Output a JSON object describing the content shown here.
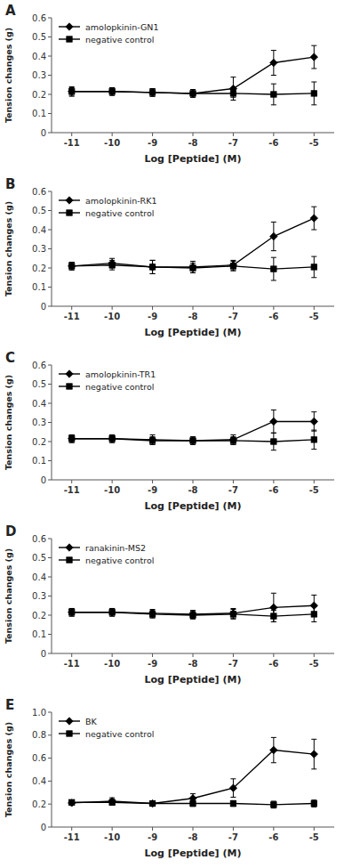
{
  "chart_data": [
    {
      "type": "line",
      "title": "A",
      "xlabel": "Log [Peptide] (M)",
      "ylabel": "Tension changes (g)",
      "x": [
        -11,
        -10,
        -9,
        -8,
        -7,
        -6,
        -5
      ],
      "xlim": [
        -11.5,
        -4.5
      ],
      "xticks": [
        -11,
        -10,
        -9,
        -8,
        -7,
        -6,
        -5
      ],
      "ylim": [
        0,
        0.6
      ],
      "yticks": [
        0,
        0.1,
        0.2,
        0.3,
        0.4,
        0.5,
        0.6
      ],
      "grid": false,
      "legend": "upper left",
      "series": [
        {
          "name": "amolopkinin-GN1",
          "color": "#000000",
          "marker": "diamond",
          "values": [
            0.215,
            0.215,
            0.21,
            0.205,
            0.23,
            0.365,
            0.395
          ],
          "errors": [
            0.025,
            0.02,
            0.02,
            0.02,
            0.06,
            0.065,
            0.06
          ]
        },
        {
          "name": "negative control",
          "color": "#000000",
          "marker": "square",
          "values": [
            0.215,
            0.215,
            0.21,
            0.205,
            0.205,
            0.2,
            0.205
          ],
          "errors": [
            0.02,
            0.02,
            0.02,
            0.02,
            0.02,
            0.055,
            0.06
          ]
        }
      ]
    },
    {
      "type": "line",
      "title": "B",
      "xlabel": "Log [Peptide] (M)",
      "ylabel": "Tension changes (g)",
      "x": [
        -11,
        -10,
        -9,
        -8,
        -7,
        -6,
        -5
      ],
      "xlim": [
        -11.5,
        -4.5
      ],
      "xticks": [
        -11,
        -10,
        -9,
        -8,
        -7,
        -6,
        -5
      ],
      "ylim": [
        0,
        0.6
      ],
      "yticks": [
        0,
        0.1,
        0.2,
        0.3,
        0.4,
        0.5,
        0.6
      ],
      "grid": false,
      "legend": "upper left",
      "series": [
        {
          "name": "amolopkinin-RK1",
          "color": "#000000",
          "marker": "diamond",
          "values": [
            0.21,
            0.225,
            0.205,
            0.205,
            0.215,
            0.365,
            0.46
          ],
          "errors": [
            0.02,
            0.025,
            0.035,
            0.03,
            0.025,
            0.075,
            0.06
          ]
        },
        {
          "name": "negative control",
          "color": "#000000",
          "marker": "square",
          "values": [
            0.21,
            0.215,
            0.205,
            0.2,
            0.21,
            0.195,
            0.205
          ],
          "errors": [
            0.02,
            0.025,
            0.035,
            0.025,
            0.025,
            0.06,
            0.055
          ]
        }
      ]
    },
    {
      "type": "line",
      "title": "C",
      "xlabel": "Log [Peptide] (M)",
      "ylabel": "Tension changes (g)",
      "x": [
        -11,
        -10,
        -9,
        -8,
        -7,
        -6,
        -5
      ],
      "xlim": [
        -11.5,
        -4.5
      ],
      "xticks": [
        -11,
        -10,
        -9,
        -8,
        -7,
        -6,
        -5
      ],
      "ylim": [
        0,
        0.6
      ],
      "yticks": [
        0,
        0.1,
        0.2,
        0.3,
        0.4,
        0.5,
        0.6
      ],
      "grid": false,
      "legend": "upper left",
      "series": [
        {
          "name": "amolopkinin-TR1",
          "color": "#000000",
          "marker": "diamond",
          "values": [
            0.215,
            0.215,
            0.21,
            0.205,
            0.21,
            0.305,
            0.305
          ],
          "errors": [
            0.02,
            0.02,
            0.025,
            0.02,
            0.025,
            0.06,
            0.05
          ]
        },
        {
          "name": "negative control",
          "color": "#000000",
          "marker": "square",
          "values": [
            0.215,
            0.215,
            0.205,
            0.205,
            0.205,
            0.2,
            0.21
          ],
          "errors": [
            0.02,
            0.02,
            0.02,
            0.02,
            0.02,
            0.045,
            0.05
          ]
        }
      ]
    },
    {
      "type": "line",
      "title": "D",
      "xlabel": "Log [Peptide] (M)",
      "ylabel": "Tension changes (g)",
      "x": [
        -11,
        -10,
        -9,
        -8,
        -7,
        -6,
        -5
      ],
      "xlim": [
        -11.5,
        -4.5
      ],
      "xticks": [
        -11,
        -10,
        -9,
        -8,
        -7,
        -6,
        -5
      ],
      "ylim": [
        0,
        0.6
      ],
      "yticks": [
        0,
        0.1,
        0.2,
        0.3,
        0.4,
        0.5,
        0.6
      ],
      "grid": false,
      "legend": "upper left",
      "series": [
        {
          "name": "ranakinin-MS2",
          "color": "#000000",
          "marker": "diamond",
          "values": [
            0.215,
            0.215,
            0.21,
            0.205,
            0.21,
            0.24,
            0.25
          ],
          "errors": [
            0.02,
            0.02,
            0.02,
            0.02,
            0.025,
            0.075,
            0.055
          ]
        },
        {
          "name": "negative control",
          "color": "#000000",
          "marker": "square",
          "values": [
            0.215,
            0.215,
            0.205,
            0.2,
            0.205,
            0.195,
            0.205
          ],
          "errors": [
            0.02,
            0.02,
            0.02,
            0.02,
            0.025,
            0.03,
            0.04
          ]
        }
      ]
    },
    {
      "type": "line",
      "title": "E",
      "xlabel": "Log [Peptide] (M)",
      "ylabel": "Tension changes (g)",
      "x": [
        -11,
        -10,
        -9,
        -8,
        -7,
        -6,
        -5
      ],
      "xlim": [
        -11.5,
        -4.5
      ],
      "xticks": [
        -11,
        -10,
        -9,
        -8,
        -7,
        -6,
        -5
      ],
      "ylim": [
        0,
        1.0
      ],
      "yticks": [
        0,
        0.2,
        0.4,
        0.6,
        0.8,
        {
          "value": 1.0,
          "label": "1.0"
        }
      ],
      "grid": false,
      "legend": "upper left",
      "series": [
        {
          "name": "BK",
          "color": "#000000",
          "marker": "diamond",
          "values": [
            0.21,
            0.225,
            0.205,
            0.25,
            0.34,
            0.67,
            0.635
          ],
          "errors": [
            0.02,
            0.03,
            0.02,
            0.04,
            0.08,
            0.11,
            0.13
          ]
        },
        {
          "name": "negative control",
          "color": "#000000",
          "marker": "square",
          "values": [
            0.215,
            0.215,
            0.205,
            0.205,
            0.205,
            0.195,
            0.205
          ],
          "errors": [
            0.02,
            0.025,
            0.02,
            0.025,
            0.025,
            0.03,
            0.03
          ]
        }
      ]
    }
  ]
}
